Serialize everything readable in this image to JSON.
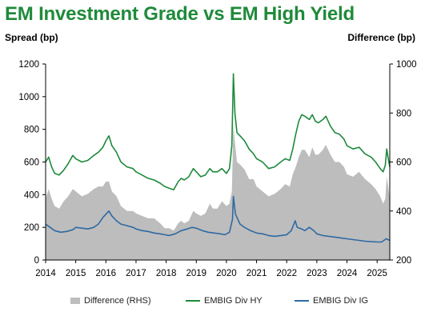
{
  "title": "EM Investment Grade vs EM High Yield",
  "left_axis_label": "Spread (bp)",
  "right_axis_label": "Difference (bp)",
  "colors": {
    "title": "#1f8a3a",
    "hy": "#1e8a3c",
    "ig": "#2f6aa3",
    "diff": "#bdbdbd"
  },
  "legend": {
    "diff": "Difference (RHS)",
    "hy": "EMBIG Div HY",
    "ig": "EMBIG Div IG"
  },
  "chart_data": {
    "type": "line",
    "title": "EM Investment Grade vs EM High Yield",
    "ylabel_left": "Spread (bp)",
    "ylabel_right": "Difference (bp)",
    "xlim": [
      2014.0,
      2025.42
    ],
    "ylim_left": [
      0,
      1200
    ],
    "ylim_right": [
      200,
      1000
    ],
    "x_ticks": [
      "2014",
      "2015",
      "2016",
      "2017",
      "2018",
      "2019",
      "2020",
      "2021",
      "2022",
      "2023",
      "2024",
      "2025"
    ],
    "y_ticks_left": [
      "0",
      "200",
      "400",
      "600",
      "800",
      "1000",
      "1200"
    ],
    "y_ticks_right": [
      "200",
      "400",
      "600",
      "800",
      "1000"
    ],
    "legend_position": "bottom",
    "grid": false,
    "series": [
      {
        "name": "EMBIG Div HY",
        "axis": "left",
        "points": [
          [
            2014.0,
            600
          ],
          [
            2014.1,
            630
          ],
          [
            2014.2,
            570
          ],
          [
            2014.3,
            530
          ],
          [
            2014.45,
            520
          ],
          [
            2014.6,
            550
          ],
          [
            2014.75,
            590
          ],
          [
            2014.9,
            640
          ],
          [
            2015.0,
            620
          ],
          [
            2015.2,
            600
          ],
          [
            2015.4,
            610
          ],
          [
            2015.6,
            640
          ],
          [
            2015.75,
            660
          ],
          [
            2015.9,
            690
          ],
          [
            2016.0,
            730
          ],
          [
            2016.1,
            760
          ],
          [
            2016.2,
            700
          ],
          [
            2016.35,
            660
          ],
          [
            2016.5,
            600
          ],
          [
            2016.7,
            570
          ],
          [
            2016.9,
            560
          ],
          [
            2017.0,
            540
          ],
          [
            2017.2,
            520
          ],
          [
            2017.4,
            500
          ],
          [
            2017.6,
            490
          ],
          [
            2017.8,
            470
          ],
          [
            2017.95,
            450
          ],
          [
            2018.1,
            440
          ],
          [
            2018.25,
            430
          ],
          [
            2018.4,
            480
          ],
          [
            2018.5,
            500
          ],
          [
            2018.6,
            490
          ],
          [
            2018.75,
            510
          ],
          [
            2018.9,
            560
          ],
          [
            2019.0,
            540
          ],
          [
            2019.15,
            510
          ],
          [
            2019.3,
            520
          ],
          [
            2019.45,
            560
          ],
          [
            2019.55,
            540
          ],
          [
            2019.7,
            540
          ],
          [
            2019.85,
            560
          ],
          [
            2020.0,
            530
          ],
          [
            2020.1,
            560
          ],
          [
            2020.18,
            700
          ],
          [
            2020.23,
            1140
          ],
          [
            2020.28,
            900
          ],
          [
            2020.35,
            780
          ],
          [
            2020.45,
            760
          ],
          [
            2020.6,
            730
          ],
          [
            2020.75,
            680
          ],
          [
            2020.9,
            650
          ],
          [
            2021.0,
            620
          ],
          [
            2021.2,
            600
          ],
          [
            2021.4,
            560
          ],
          [
            2021.6,
            570
          ],
          [
            2021.8,
            600
          ],
          [
            2021.95,
            620
          ],
          [
            2022.1,
            610
          ],
          [
            2022.2,
            680
          ],
          [
            2022.3,
            770
          ],
          [
            2022.4,
            850
          ],
          [
            2022.5,
            890
          ],
          [
            2022.6,
            880
          ],
          [
            2022.75,
            860
          ],
          [
            2022.85,
            890
          ],
          [
            2022.95,
            850
          ],
          [
            2023.05,
            840
          ],
          [
            2023.2,
            860
          ],
          [
            2023.3,
            880
          ],
          [
            2023.45,
            820
          ],
          [
            2023.6,
            780
          ],
          [
            2023.75,
            770
          ],
          [
            2023.9,
            740
          ],
          [
            2024.0,
            700
          ],
          [
            2024.2,
            680
          ],
          [
            2024.4,
            690
          ],
          [
            2024.6,
            650
          ],
          [
            2024.8,
            630
          ],
          [
            2024.95,
            600
          ],
          [
            2025.1,
            560
          ],
          [
            2025.2,
            540
          ],
          [
            2025.27,
            580
          ],
          [
            2025.32,
            680
          ],
          [
            2025.37,
            620
          ],
          [
            2025.42,
            570
          ]
        ]
      },
      {
        "name": "EMBIG Div IG",
        "axis": "left",
        "points": [
          [
            2014.0,
            220
          ],
          [
            2014.15,
            200
          ],
          [
            2014.3,
            180
          ],
          [
            2014.5,
            170
          ],
          [
            2014.7,
            175
          ],
          [
            2014.9,
            185
          ],
          [
            2015.0,
            200
          ],
          [
            2015.2,
            195
          ],
          [
            2015.4,
            190
          ],
          [
            2015.6,
            200
          ],
          [
            2015.75,
            220
          ],
          [
            2015.9,
            260
          ],
          [
            2016.0,
            280
          ],
          [
            2016.1,
            300
          ],
          [
            2016.2,
            270
          ],
          [
            2016.35,
            240
          ],
          [
            2016.5,
            220
          ],
          [
            2016.7,
            210
          ],
          [
            2016.9,
            200
          ],
          [
            2017.0,
            190
          ],
          [
            2017.2,
            180
          ],
          [
            2017.4,
            175
          ],
          [
            2017.6,
            165
          ],
          [
            2017.8,
            160
          ],
          [
            2017.95,
            155
          ],
          [
            2018.1,
            150
          ],
          [
            2018.3,
            160
          ],
          [
            2018.5,
            180
          ],
          [
            2018.7,
            190
          ],
          [
            2018.85,
            200
          ],
          [
            2019.0,
            195
          ],
          [
            2019.2,
            180
          ],
          [
            2019.4,
            170
          ],
          [
            2019.6,
            165
          ],
          [
            2019.8,
            160
          ],
          [
            2019.95,
            155
          ],
          [
            2020.1,
            170
          ],
          [
            2020.2,
            250
          ],
          [
            2020.23,
            390
          ],
          [
            2020.3,
            280
          ],
          [
            2020.45,
            220
          ],
          [
            2020.6,
            200
          ],
          [
            2020.8,
            180
          ],
          [
            2021.0,
            165
          ],
          [
            2021.2,
            160
          ],
          [
            2021.4,
            150
          ],
          [
            2021.6,
            145
          ],
          [
            2021.8,
            150
          ],
          [
            2022.0,
            155
          ],
          [
            2022.15,
            180
          ],
          [
            2022.28,
            240
          ],
          [
            2022.35,
            200
          ],
          [
            2022.5,
            190
          ],
          [
            2022.6,
            180
          ],
          [
            2022.75,
            200
          ],
          [
            2022.9,
            180
          ],
          [
            2023.0,
            160
          ],
          [
            2023.2,
            150
          ],
          [
            2023.4,
            145
          ],
          [
            2023.6,
            140
          ],
          [
            2023.8,
            135
          ],
          [
            2024.0,
            130
          ],
          [
            2024.2,
            125
          ],
          [
            2024.4,
            120
          ],
          [
            2024.6,
            115
          ],
          [
            2024.8,
            112
          ],
          [
            2025.0,
            110
          ],
          [
            2025.15,
            110
          ],
          [
            2025.3,
            130
          ],
          [
            2025.42,
            120
          ]
        ]
      },
      {
        "name": "Difference (RHS)",
        "axis": "right",
        "type": "area",
        "points": [
          [
            2014.0,
            450
          ],
          [
            2014.1,
            490
          ],
          [
            2014.2,
            450
          ],
          [
            2014.3,
            420
          ],
          [
            2014.45,
            410
          ],
          [
            2014.6,
            440
          ],
          [
            2014.75,
            460
          ],
          [
            2014.9,
            490
          ],
          [
            2015.0,
            480
          ],
          [
            2015.2,
            460
          ],
          [
            2015.4,
            470
          ],
          [
            2015.6,
            490
          ],
          [
            2015.75,
            500
          ],
          [
            2015.9,
            500
          ],
          [
            2016.0,
            520
          ],
          [
            2016.1,
            520
          ],
          [
            2016.2,
            480
          ],
          [
            2016.35,
            460
          ],
          [
            2016.5,
            420
          ],
          [
            2016.7,
            400
          ],
          [
            2016.9,
            400
          ],
          [
            2017.0,
            390
          ],
          [
            2017.2,
            380
          ],
          [
            2017.4,
            370
          ],
          [
            2017.6,
            370
          ],
          [
            2017.8,
            350
          ],
          [
            2017.95,
            330
          ],
          [
            2018.1,
            330
          ],
          [
            2018.25,
            320
          ],
          [
            2018.4,
            350
          ],
          [
            2018.5,
            360
          ],
          [
            2018.6,
            350
          ],
          [
            2018.75,
            360
          ],
          [
            2018.9,
            400
          ],
          [
            2019.0,
            390
          ],
          [
            2019.15,
            380
          ],
          [
            2019.3,
            390
          ],
          [
            2019.45,
            430
          ],
          [
            2019.55,
            410
          ],
          [
            2019.7,
            410
          ],
          [
            2019.85,
            440
          ],
          [
            2020.0,
            420
          ],
          [
            2020.1,
            430
          ],
          [
            2020.18,
            480
          ],
          [
            2020.23,
            750
          ],
          [
            2020.28,
            680
          ],
          [
            2020.35,
            600
          ],
          [
            2020.45,
            590
          ],
          [
            2020.6,
            570
          ],
          [
            2020.75,
            530
          ],
          [
            2020.9,
            530
          ],
          [
            2021.0,
            500
          ],
          [
            2021.2,
            480
          ],
          [
            2021.4,
            460
          ],
          [
            2021.6,
            470
          ],
          [
            2021.8,
            490
          ],
          [
            2021.95,
            510
          ],
          [
            2022.1,
            500
          ],
          [
            2022.2,
            550
          ],
          [
            2022.3,
            580
          ],
          [
            2022.4,
            620
          ],
          [
            2022.5,
            650
          ],
          [
            2022.6,
            650
          ],
          [
            2022.75,
            620
          ],
          [
            2022.85,
            660
          ],
          [
            2022.95,
            630
          ],
          [
            2023.05,
            630
          ],
          [
            2023.2,
            650
          ],
          [
            2023.3,
            670
          ],
          [
            2023.45,
            630
          ],
          [
            2023.6,
            600
          ],
          [
            2023.75,
            600
          ],
          [
            2023.9,
            580
          ],
          [
            2024.0,
            550
          ],
          [
            2024.2,
            540
          ],
          [
            2024.4,
            560
          ],
          [
            2024.6,
            530
          ],
          [
            2024.8,
            510
          ],
          [
            2024.95,
            490
          ],
          [
            2025.1,
            460
          ],
          [
            2025.2,
            430
          ],
          [
            2025.27,
            450
          ],
          [
            2025.32,
            540
          ],
          [
            2025.37,
            500
          ],
          [
            2025.42,
            450
          ]
        ]
      }
    ]
  }
}
